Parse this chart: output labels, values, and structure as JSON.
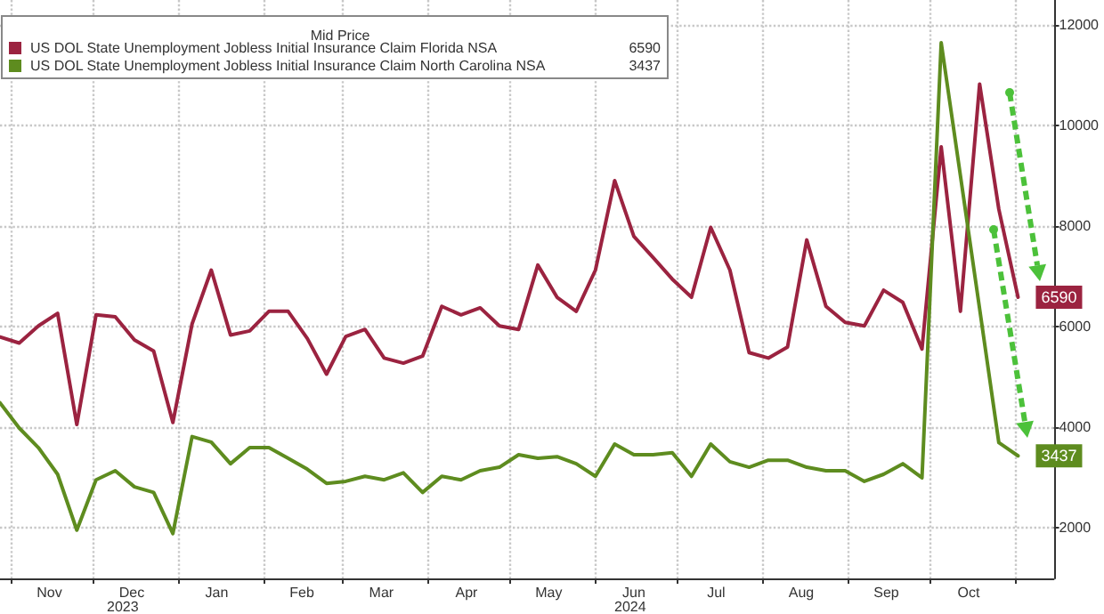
{
  "chart_data": {
    "type": "line",
    "legend_title": "Mid Price",
    "legend": "top left",
    "grid": true,
    "line_style": "solid",
    "marker": "none",
    "x": [
      "2023-10-28",
      "2023-11-04",
      "2023-11-11",
      "2023-11-18",
      "2023-11-25",
      "2023-12-02",
      "2023-12-09",
      "2023-12-16",
      "2023-12-23",
      "2023-12-30",
      "2024-01-06",
      "2024-01-13",
      "2024-01-20",
      "2024-01-27",
      "2024-02-03",
      "2024-02-10",
      "2024-02-17",
      "2024-02-24",
      "2024-03-02",
      "2024-03-09",
      "2024-03-16",
      "2024-03-23",
      "2024-03-30",
      "2024-04-06",
      "2024-04-13",
      "2024-04-20",
      "2024-04-27",
      "2024-05-04",
      "2024-05-11",
      "2024-05-18",
      "2024-05-25",
      "2024-06-01",
      "2024-06-08",
      "2024-06-15",
      "2024-06-22",
      "2024-06-29",
      "2024-07-06",
      "2024-07-13",
      "2024-07-20",
      "2024-07-27",
      "2024-08-03",
      "2024-08-10",
      "2024-08-17",
      "2024-08-24",
      "2024-08-31",
      "2024-09-07",
      "2024-09-14",
      "2024-09-21",
      "2024-09-28",
      "2024-10-05",
      "2024-10-12",
      "2024-10-19",
      "2024-10-26",
      "2024-11-02"
    ],
    "series": [
      {
        "name": "US DOL State Unemployment Jobless Initial Insurance Claim Florida NSA",
        "color": "#9b2340",
        "values": [
          5800,
          5680,
          6020,
          6270,
          4060,
          6240,
          6200,
          5740,
          5520,
          4100,
          6060,
          7130,
          5840,
          5920,
          6310,
          6310,
          5770,
          5060,
          5810,
          5950,
          5380,
          5280,
          5420,
          6410,
          6240,
          6380,
          6020,
          5950,
          7230,
          6590,
          6310,
          7130,
          8910,
          7800,
          7380,
          6950,
          6590,
          7980,
          7130,
          5490,
          5380,
          5600,
          7730,
          6410,
          6090,
          6020,
          6730,
          6490,
          5560,
          9580,
          6310,
          10830,
          8340,
          6590
        ],
        "value_labels": [
          null,
          null,
          null,
          null,
          null,
          null,
          null,
          null,
          null,
          null,
          null,
          null,
          null,
          null,
          null,
          null,
          null,
          null,
          null,
          null,
          null,
          null,
          null,
          null,
          null,
          null,
          null,
          null,
          null,
          null,
          null,
          null,
          null,
          null,
          null,
          null,
          null,
          null,
          null,
          null,
          null,
          null,
          null,
          null,
          null,
          null,
          null,
          null,
          null,
          null,
          null,
          null,
          null,
          "6590"
        ]
      },
      {
        "name": "US DOL State Unemployment Jobless Initial Insurance Claim North Carolina NSA",
        "color": "#5e8c1f",
        "values": [
          4490,
          3990,
          3600,
          3070,
          1960,
          2960,
          3140,
          2820,
          2710,
          1890,
          3820,
          3710,
          3280,
          3600,
          3600,
          3390,
          3170,
          2890,
          2930,
          3030,
          2960,
          3100,
          2710,
          3030,
          2960,
          3140,
          3210,
          3460,
          3390,
          3420,
          3280,
          3030,
          3670,
          3460,
          3460,
          3500,
          3030,
          3670,
          3320,
          3210,
          3350,
          3350,
          3210,
          3140,
          3140,
          2930,
          3070,
          3280,
          3000,
          11650,
          9010,
          6360,
          3700,
          3437
        ],
        "value_labels": [
          null,
          null,
          null,
          null,
          null,
          null,
          null,
          null,
          null,
          null,
          null,
          null,
          null,
          null,
          null,
          null,
          null,
          null,
          null,
          null,
          null,
          null,
          null,
          null,
          null,
          null,
          null,
          null,
          null,
          null,
          null,
          null,
          null,
          null,
          null,
          null,
          null,
          null,
          null,
          null,
          null,
          null,
          null,
          null,
          null,
          null,
          null,
          null,
          null,
          null,
          null,
          null,
          null,
          "3437"
        ]
      }
    ],
    "xlim": [
      "2023-10-28",
      "2024-11-15"
    ],
    "xticks": [
      {
        "value": "2023-11-01",
        "label": null
      },
      {
        "value": "2023-11-15",
        "label": "Nov"
      },
      {
        "value": "2023-12-01",
        "label": null
      },
      {
        "value": "2023-12-15",
        "label": "Dec"
      },
      {
        "value": "2024-01-01",
        "label": null
      },
      {
        "value": "2024-01-15",
        "label": "Jan"
      },
      {
        "value": "2024-02-01",
        "label": null
      },
      {
        "value": "2024-02-15",
        "label": "Feb"
      },
      {
        "value": "2024-03-01",
        "label": null
      },
      {
        "value": "2024-03-15",
        "label": "Mar"
      },
      {
        "value": "2024-04-01",
        "label": null
      },
      {
        "value": "2024-04-15",
        "label": "Apr"
      },
      {
        "value": "2024-05-01",
        "label": null
      },
      {
        "value": "2024-05-15",
        "label": "May"
      },
      {
        "value": "2024-06-01",
        "label": null
      },
      {
        "value": "2024-06-15",
        "label": "Jun"
      },
      {
        "value": "2024-07-01",
        "label": null
      },
      {
        "value": "2024-07-15",
        "label": "Jul"
      },
      {
        "value": "2024-08-01",
        "label": null
      },
      {
        "value": "2024-08-15",
        "label": "Aug"
      },
      {
        "value": "2024-09-01",
        "label": null
      },
      {
        "value": "2024-09-15",
        "label": "Sep"
      },
      {
        "value": "2024-10-01",
        "label": null
      },
      {
        "value": "2024-10-15",
        "label": "Oct"
      },
      {
        "value": "2024-11-01",
        "label": null
      }
    ],
    "ylim": [
      1000,
      12500
    ],
    "yticks": [
      2000,
      4000,
      6000,
      8000,
      10000,
      12000
    ],
    "annotations": [
      "2023",
      "2024"
    ]
  }
}
